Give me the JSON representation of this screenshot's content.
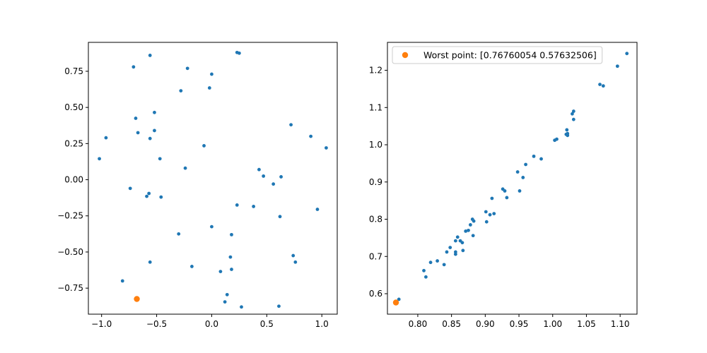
{
  "chart_data": [
    {
      "type": "scatter",
      "xlim": [
        -1.12,
        1.14
      ],
      "ylim": [
        -0.93,
        0.95
      ],
      "xticks": [
        -1.0,
        -0.5,
        0.0,
        0.5,
        1.0
      ],
      "xtick_labels": [
        "−1.0",
        "−0.5",
        "0.0",
        "0.5",
        "1.0"
      ],
      "yticks": [
        -0.75,
        -0.5,
        -0.25,
        0.0,
        0.25,
        0.5,
        0.75
      ],
      "ytick_labels": [
        "−0.75",
        "−0.50",
        "−0.25",
        "0.00",
        "0.25",
        "0.50",
        "0.75"
      ],
      "grid": false,
      "series": [
        {
          "color": "#1f77b4",
          "points": [
            [
              -0.71,
              0.78
            ],
            [
              -0.56,
              0.86
            ],
            [
              -0.22,
              0.77
            ],
            [
              0.23,
              0.88
            ],
            [
              0.25,
              0.875
            ],
            [
              0.0,
              0.73
            ],
            [
              -0.02,
              0.635
            ],
            [
              -0.28,
              0.615
            ],
            [
              -0.52,
              0.465
            ],
            [
              -0.69,
              0.425
            ],
            [
              -0.67,
              0.325
            ],
            [
              -0.52,
              0.34
            ],
            [
              -0.56,
              0.285
            ],
            [
              -0.96,
              0.29
            ],
            [
              -1.02,
              0.145
            ],
            [
              -0.47,
              0.145
            ],
            [
              -0.07,
              0.235
            ],
            [
              -0.24,
              0.08
            ],
            [
              0.72,
              0.38
            ],
            [
              0.9,
              0.3
            ],
            [
              1.04,
              0.22
            ],
            [
              0.43,
              0.07
            ],
            [
              0.47,
              0.025
            ],
            [
              0.63,
              0.02
            ],
            [
              0.56,
              -0.03
            ],
            [
              -0.74,
              -0.06
            ],
            [
              -0.57,
              -0.095
            ],
            [
              -0.59,
              -0.115
            ],
            [
              -0.46,
              -0.12
            ],
            [
              0.23,
              -0.175
            ],
            [
              0.38,
              -0.185
            ],
            [
              0.96,
              -0.205
            ],
            [
              0.62,
              -0.255
            ],
            [
              0.0,
              -0.325
            ],
            [
              -0.3,
              -0.375
            ],
            [
              0.18,
              -0.38
            ],
            [
              0.17,
              -0.535
            ],
            [
              0.74,
              -0.525
            ],
            [
              0.76,
              -0.57
            ],
            [
              -0.56,
              -0.57
            ],
            [
              -0.18,
              -0.6
            ],
            [
              0.08,
              -0.635
            ],
            [
              0.18,
              -0.62
            ],
            [
              -0.81,
              -0.7
            ],
            [
              0.14,
              -0.795
            ],
            [
              0.12,
              -0.845
            ],
            [
              0.27,
              -0.88
            ],
            [
              0.61,
              -0.875
            ]
          ]
        },
        {
          "color": "#ff7f0e",
          "points": [
            [
              -0.68,
              -0.825
            ]
          ]
        }
      ]
    },
    {
      "type": "scatter",
      "xlim": [
        0.755,
        1.125
      ],
      "ylim": [
        0.545,
        1.275
      ],
      "xticks": [
        0.8,
        0.85,
        0.9,
        0.95,
        1.0,
        1.05,
        1.1
      ],
      "xtick_labels": [
        "0.80",
        "0.85",
        "0.90",
        "0.95",
        "1.00",
        "1.05",
        "1.10"
      ],
      "yticks": [
        0.6,
        0.7,
        0.8,
        0.9,
        1.0,
        1.1,
        1.2
      ],
      "ytick_labels": [
        "0.6",
        "0.7",
        "0.8",
        "0.9",
        "1.0",
        "1.1",
        "1.2"
      ],
      "grid": false,
      "legend_position": "top-left",
      "series": [
        {
          "color": "#1f77b4",
          "points": [
            [
              0.772,
              0.585
            ],
            [
              0.809,
              0.662
            ],
            [
              0.812,
              0.645
            ],
            [
              0.819,
              0.684
            ],
            [
              0.829,
              0.688
            ],
            [
              0.839,
              0.678
            ],
            [
              0.843,
              0.712
            ],
            [
              0.848,
              0.724
            ],
            [
              0.856,
              0.706
            ],
            [
              0.856,
              0.712
            ],
            [
              0.856,
              0.742
            ],
            [
              0.859,
              0.752
            ],
            [
              0.863,
              0.742
            ],
            [
              0.867,
              0.716
            ],
            [
              0.866,
              0.737
            ],
            [
              0.871,
              0.768
            ],
            [
              0.875,
              0.77
            ],
            [
              0.878,
              0.785
            ],
            [
              0.881,
              0.8
            ],
            [
              0.883,
              0.795
            ],
            [
              0.882,
              0.756
            ],
            [
              0.901,
              0.82
            ],
            [
              0.902,
              0.793
            ],
            [
              0.907,
              0.812
            ],
            [
              0.913,
              0.815
            ],
            [
              0.91,
              0.856
            ],
            [
              0.926,
              0.881
            ],
            [
              0.929,
              0.876
            ],
            [
              0.932,
              0.858
            ],
            [
              0.948,
              0.927
            ],
            [
              0.951,
              0.876
            ],
            [
              0.956,
              0.912
            ],
            [
              0.96,
              0.947
            ],
            [
              0.972,
              0.969
            ],
            [
              0.983,
              0.962
            ],
            [
              1.003,
              1.012
            ],
            [
              1.006,
              1.015
            ],
            [
              1.02,
              1.028
            ],
            [
              1.021,
              1.04
            ],
            [
              1.022,
              1.025
            ],
            [
              1.022,
              1.03
            ],
            [
              1.029,
              1.083
            ],
            [
              1.031,
              1.09
            ],
            [
              1.031,
              1.068
            ],
            [
              1.07,
              1.162
            ],
            [
              1.075,
              1.158
            ],
            [
              1.096,
              1.211
            ],
            [
              1.11,
              1.245
            ]
          ]
        },
        {
          "name": "Worst point: [0.76760054 0.57632506]",
          "color": "#ff7f0e",
          "points": [
            [
              0.7676,
              0.5763
            ]
          ]
        }
      ]
    }
  ]
}
